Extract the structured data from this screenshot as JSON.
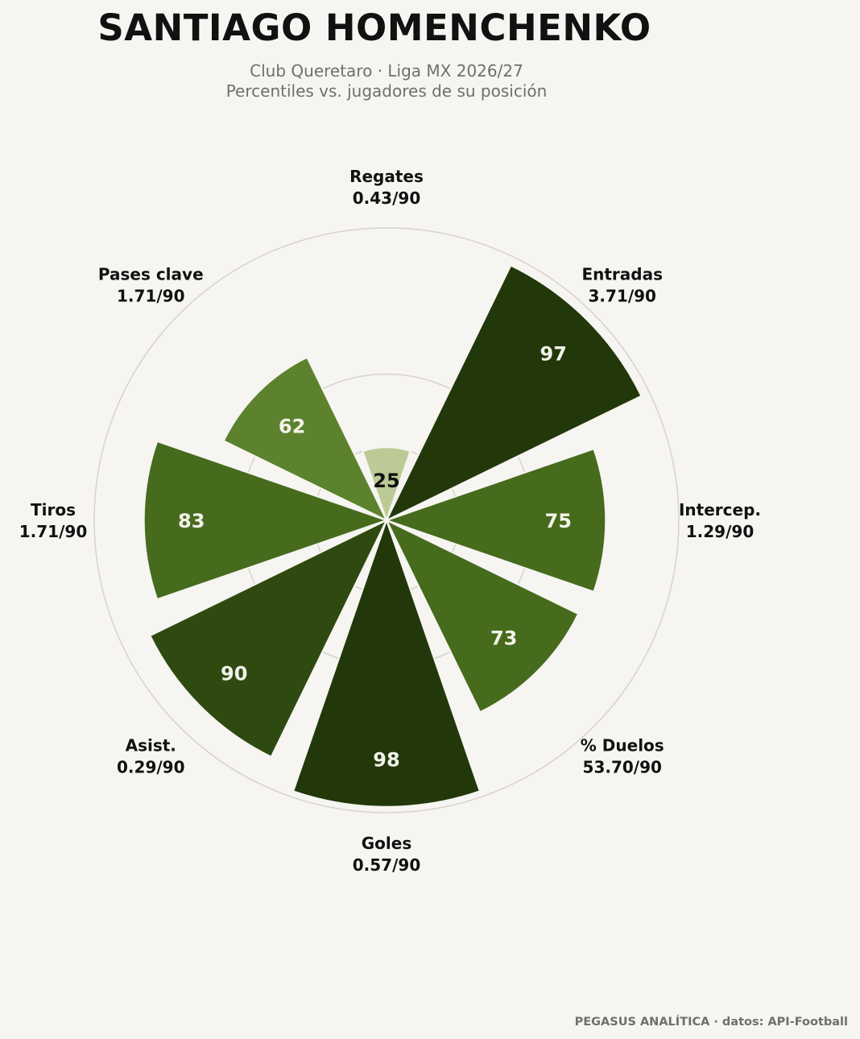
{
  "header": {
    "title": "SANTIAGO HOMENCHENKO",
    "subtitle_line1": "Club Queretaro · Liga MX 2026/27",
    "subtitle_line2": "Percentiles vs. jugadores de su posición"
  },
  "footer": {
    "credit": "PEGASUS ANALÍTICA · datos: API-Football"
  },
  "chart_data": {
    "type": "polar-bar",
    "title": "SANTIAGO HOMENCHENKO",
    "rlim": [
      0,
      100
    ],
    "grid": true,
    "categories": [
      {
        "name": "Regates",
        "per90": "0.43/90",
        "percentile": 25
      },
      {
        "name": "Entradas",
        "per90": "3.71/90",
        "percentile": 97
      },
      {
        "name": "Intercep.",
        "per90": "1.29/90",
        "percentile": 75
      },
      {
        "name": "% Duelos",
        "per90": "53.70/90",
        "percentile": 73
      },
      {
        "name": "Goles",
        "per90": "0.57/90",
        "percentile": 98
      },
      {
        "name": "Asist.",
        "per90": "0.29/90",
        "percentile": 90
      },
      {
        "name": "Tiros",
        "per90": "1.71/90",
        "percentile": 83
      },
      {
        "name": "Pases clave",
        "per90": "1.71/90",
        "percentile": 62
      }
    ],
    "colors": {
      "background": "#f6f5f1",
      "grid": "#d6d3cc",
      "light_text": "#f2f2ea",
      "dark_text": "#111111",
      "scale": [
        "#bccb95",
        "#5d822d",
        "#466b1d",
        "#2e4a10",
        "#22380a"
      ]
    }
  }
}
